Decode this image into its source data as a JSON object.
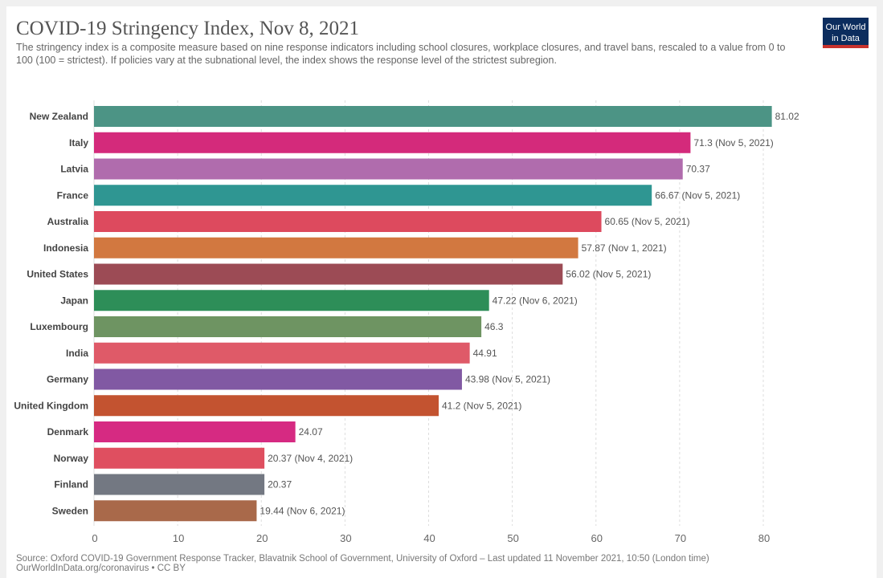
{
  "header": {
    "logo_line1": "Our World",
    "logo_line2": "in Data"
  },
  "footer": {
    "source": "Source: Oxford COVID-19 Government Response Tracker, Blavatnik School of Government, University of Oxford – Last updated 11 November 2021, 10:50 (London time)",
    "link": "OurWorldInData.org/coronavirus • CC BY"
  },
  "chart_data": {
    "type": "bar",
    "orientation": "horizontal",
    "title": "COVID-19 Stringency Index, Nov 8, 2021",
    "subtitle": "The stringency index is a composite measure based on nine response indicators including school closures, workplace closures, and travel bans, rescaled to a value from 0 to 100 (100 = strictest). If policies vary at the subnational level, the index shows the response level of the strictest subregion.",
    "xlim": [
      0,
      80
    ],
    "xticks": [
      0,
      10,
      20,
      30,
      40,
      50,
      60,
      70,
      80
    ],
    "grid": true,
    "categories": [
      "New Zealand",
      "Italy",
      "Latvia",
      "France",
      "Australia",
      "Indonesia",
      "United States",
      "Japan",
      "Luxembourg",
      "India",
      "Germany",
      "United Kingdom",
      "Denmark",
      "Norway",
      "Finland",
      "Sweden"
    ],
    "values": [
      81.02,
      71.3,
      70.37,
      66.67,
      60.65,
      57.87,
      56.02,
      47.22,
      46.3,
      44.91,
      43.98,
      41.2,
      24.07,
      20.37,
      20.37,
      19.44
    ],
    "value_labels": [
      "81.02",
      "71.3 (Nov 5, 2021)",
      "70.37",
      "66.67 (Nov 5, 2021)",
      "60.65 (Nov 5, 2021)",
      "57.87 (Nov 1, 2021)",
      "56.02 (Nov 5, 2021)",
      "47.22 (Nov 6, 2021)",
      "46.3",
      "44.91",
      "43.98 (Nov 5, 2021)",
      "41.2 (Nov 5, 2021)",
      "24.07",
      "20.37 (Nov 4, 2021)",
      "20.37",
      "19.44 (Nov 6, 2021)"
    ],
    "colors": [
      "#4c9485",
      "#d42a7b",
      "#b06cad",
      "#2f9692",
      "#dd4a5e",
      "#d27840",
      "#9c4b55",
      "#2d8e58",
      "#6e9462",
      "#df5a68",
      "#8159a3",
      "#c35330",
      "#d62a82",
      "#df4f60",
      "#737882",
      "#a9694a"
    ]
  }
}
